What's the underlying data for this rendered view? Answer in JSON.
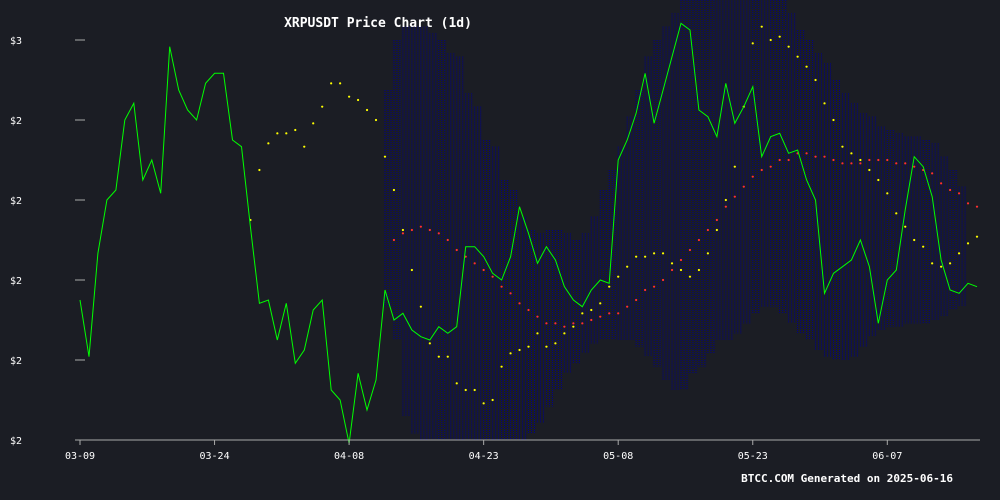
{
  "chart_data": {
    "type": "line",
    "title": "XRPUSDT Price Chart (1d)",
    "footer": "BTCC.COM Generated on 2025-06-16",
    "xlabel": "",
    "ylabel": "",
    "x_ticks": [
      "03-09",
      "03-24",
      "04-08",
      "04-23",
      "05-08",
      "05-23",
      "06-07"
    ],
    "y_ticks": [
      "$3",
      "$2",
      "$2",
      "$2",
      "$2",
      "$2"
    ],
    "y_range": [
      1.8,
      3.0
    ],
    "colors": {
      "background": "#1b1d24",
      "price": "#00ff00",
      "sma20": "#ffff00",
      "sma50": "#ff3030",
      "bollinger": "#00008b",
      "axis": "#aaaaaa",
      "text": "#ffffff"
    },
    "x_start": "2025-03-09",
    "close": [
      2.22,
      2.05,
      2.36,
      2.52,
      2.55,
      2.76,
      2.81,
      2.58,
      2.64,
      2.54,
      2.98,
      2.85,
      2.79,
      2.76,
      2.87,
      2.9,
      2.9,
      2.7,
      2.68,
      2.44,
      2.21,
      2.22,
      2.1,
      2.21,
      2.03,
      2.07,
      2.19,
      2.22,
      1.95,
      1.92,
      1.79,
      2.0,
      1.89,
      1.98,
      2.25,
      2.16,
      2.18,
      2.13,
      2.11,
      2.1,
      2.14,
      2.12,
      2.14,
      2.38,
      2.38,
      2.35,
      2.3,
      2.28,
      2.35,
      2.5,
      2.42,
      2.33,
      2.38,
      2.34,
      2.26,
      2.22,
      2.2,
      2.25,
      2.28,
      2.27,
      2.64,
      2.7,
      2.78,
      2.9,
      2.75,
      2.85,
      2.95,
      3.05,
      3.03,
      2.79,
      2.77,
      2.71,
      2.87,
      2.75,
      2.8,
      2.86,
      2.65,
      2.71,
      2.72,
      2.66,
      2.67,
      2.58,
      2.52,
      2.24,
      2.3,
      2.32,
      2.34,
      2.4,
      2.32,
      2.15,
      2.28,
      2.31,
      2.49,
      2.65,
      2.62,
      2.53,
      2.34,
      2.25,
      2.24,
      2.27,
      2.26
    ],
    "sma20": [
      null,
      null,
      null,
      null,
      null,
      null,
      null,
      null,
      null,
      null,
      null,
      null,
      null,
      null,
      null,
      null,
      null,
      null,
      null,
      2.46,
      2.61,
      2.69,
      2.72,
      2.72,
      2.73,
      2.68,
      2.75,
      2.8,
      2.87,
      2.87,
      2.83,
      2.82,
      2.79,
      2.76,
      2.65,
      2.55,
      2.43,
      2.31,
      2.2,
      2.09,
      2.05,
      2.05,
      1.97,
      1.95,
      1.95,
      1.91,
      1.92,
      2.02,
      2.06,
      2.07,
      2.08,
      2.12,
      2.08,
      2.09,
      2.12,
      2.14,
      2.18,
      2.19,
      2.21,
      2.26,
      2.29,
      2.32,
      2.35,
      2.35,
      2.36,
      2.36,
      2.33,
      2.31,
      2.29,
      2.31,
      2.36,
      2.43,
      2.52,
      2.62,
      2.8,
      2.99,
      3.04,
      3.0,
      3.01,
      2.98,
      2.95,
      2.92,
      2.88,
      2.81,
      2.76,
      2.68,
      2.66,
      2.64,
      2.61,
      2.58,
      2.54,
      2.48,
      2.44,
      2.4,
      2.38,
      2.33,
      2.32,
      2.33,
      2.36,
      2.39,
      2.41
    ],
    "sma50": [
      null,
      null,
      null,
      null,
      null,
      null,
      null,
      null,
      null,
      null,
      null,
      null,
      null,
      null,
      null,
      null,
      null,
      null,
      null,
      null,
      null,
      null,
      null,
      null,
      null,
      null,
      null,
      null,
      null,
      null,
      null,
      null,
      null,
      null,
      null,
      2.4,
      2.42,
      2.43,
      2.44,
      2.43,
      2.42,
      2.4,
      2.37,
      2.35,
      2.33,
      2.31,
      2.29,
      2.26,
      2.24,
      2.21,
      2.19,
      2.17,
      2.15,
      2.15,
      2.14,
      2.15,
      2.15,
      2.16,
      2.17,
      2.18,
      2.18,
      2.2,
      2.22,
      2.25,
      2.26,
      2.28,
      2.31,
      2.34,
      2.37,
      2.4,
      2.43,
      2.46,
      2.5,
      2.53,
      2.56,
      2.59,
      2.61,
      2.62,
      2.64,
      2.64,
      2.66,
      2.66,
      2.65,
      2.65,
      2.64,
      2.63,
      2.63,
      2.63,
      2.64,
      2.64,
      2.64,
      2.63,
      2.63,
      2.62,
      2.61,
      2.6,
      2.57,
      2.55,
      2.54,
      2.51,
      2.5
    ],
    "bb_upper": [
      null,
      null,
      null,
      null,
      null,
      null,
      null,
      null,
      null,
      null,
      null,
      null,
      null,
      null,
      null,
      null,
      null,
      null,
      null,
      null,
      null,
      null,
      null,
      null,
      null,
      null,
      null,
      null,
      null,
      null,
      null,
      null,
      null,
      null,
      2.85,
      3.0,
      3.04,
      3.04,
      3.04,
      3.02,
      3.0,
      2.96,
      2.95,
      2.84,
      2.8,
      2.7,
      2.68,
      2.58,
      2.55,
      2.47,
      2.43,
      2.42,
      2.43,
      2.43,
      2.42,
      2.4,
      2.42,
      2.47,
      2.55,
      2.61,
      2.68,
      2.77,
      2.85,
      2.95,
      3.0,
      3.04,
      3.08,
      3.12,
      3.15,
      3.18,
      3.18,
      3.19,
      3.19,
      3.19,
      3.19,
      3.18,
      3.17,
      3.15,
      3.12,
      3.08,
      3.03,
      3.0,
      2.96,
      2.93,
      2.88,
      2.84,
      2.81,
      2.78,
      2.77,
      2.74,
      2.73,
      2.72,
      2.71,
      2.71,
      2.7,
      2.69,
      2.65,
      2.61,
      2.56
    ],
    "bb_lower": [
      null,
      null,
      null,
      null,
      null,
      null,
      null,
      null,
      null,
      null,
      null,
      null,
      null,
      null,
      null,
      null,
      null,
      null,
      null,
      null,
      null,
      null,
      null,
      null,
      null,
      null,
      null,
      null,
      null,
      null,
      null,
      null,
      null,
      null,
      2.2,
      2.1,
      1.87,
      1.82,
      1.8,
      1.8,
      1.8,
      1.8,
      1.8,
      1.8,
      1.8,
      1.8,
      1.8,
      1.8,
      1.8,
      1.8,
      1.82,
      1.85,
      1.9,
      1.95,
      2.0,
      2.03,
      2.06,
      2.09,
      2.1,
      2.1,
      2.1,
      2.1,
      2.08,
      2.05,
      2.02,
      1.98,
      1.95,
      1.95,
      2.0,
      2.02,
      2.06,
      2.1,
      2.1,
      2.12,
      2.15,
      2.18,
      2.2,
      2.2,
      2.18,
      2.15,
      2.12,
      2.1,
      2.07,
      2.05,
      2.04,
      2.04,
      2.05,
      2.08,
      2.11,
      2.13,
      2.14,
      2.14,
      2.15,
      2.15,
      2.15,
      2.16,
      2.17,
      2.19,
      2.2
    ]
  }
}
